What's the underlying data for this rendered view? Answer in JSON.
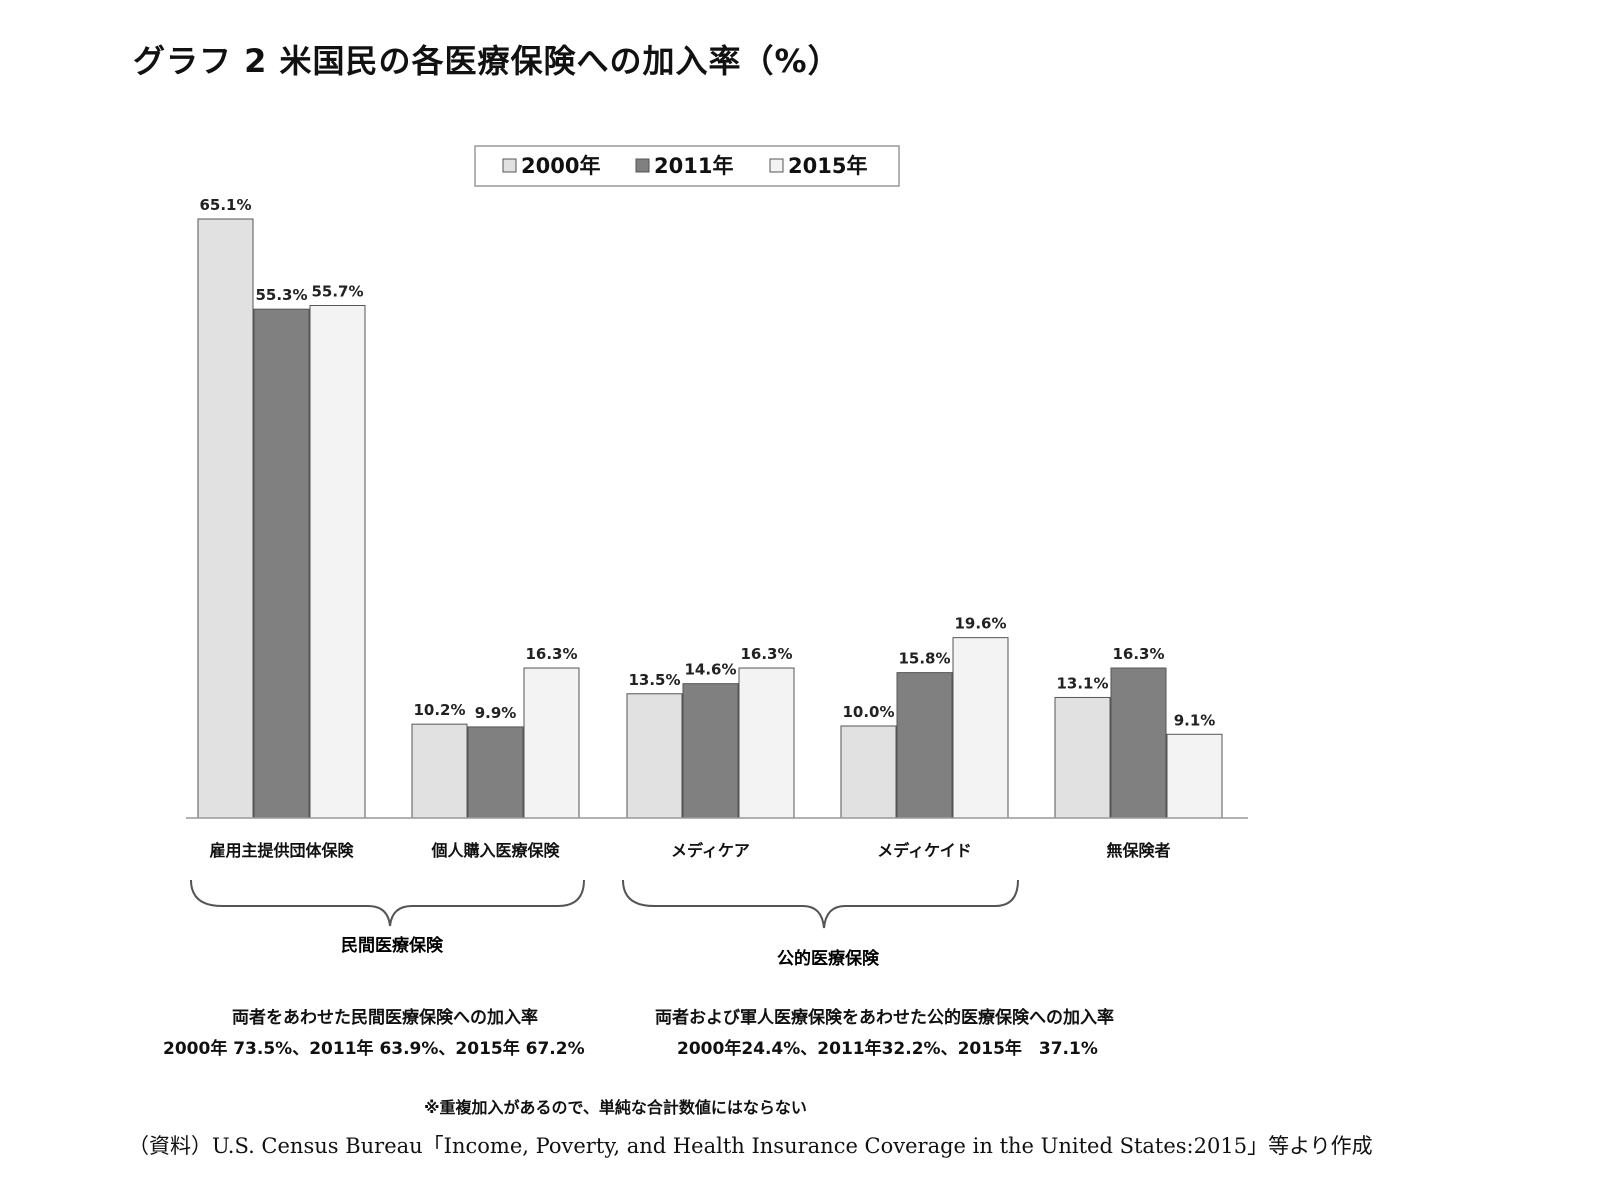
{
  "title": "グラフ 2 米国民の各医療保険への加入率（%）",
  "chart_data": {
    "type": "bar",
    "categories": [
      "雇用主提供団体保険",
      "個人購入医療保険",
      "メディケア",
      "メディケイド",
      "無保険者"
    ],
    "series": [
      {
        "name": "2000年",
        "values": [
          65.1,
          10.2,
          13.5,
          10.0,
          13.1
        ],
        "labels": [
          "65.1%",
          "10.2%",
          "13.5%",
          "10.0%",
          "13.1%"
        ]
      },
      {
        "name": "2011年",
        "values": [
          55.3,
          9.9,
          14.6,
          15.8,
          16.3
        ],
        "labels": [
          "55.3%",
          "9.9%",
          "14.6%",
          "15.8%",
          "16.3%"
        ]
      },
      {
        "name": "2015年",
        "values": [
          55.7,
          16.3,
          16.3,
          19.6,
          9.1
        ],
        "labels": [
          "55.7%",
          "16.3%",
          "16.3%",
          "19.6%",
          "9.1%"
        ]
      }
    ],
    "colors": [
      "#e1e1e1",
      "#808080",
      "#f3f3f3"
    ],
    "legend_position": "top",
    "ylim": [
      0,
      67
    ]
  },
  "groups": {
    "private": "民間医療保険",
    "public": "公的医療保険"
  },
  "notes": {
    "private_line1": "両者をあわせた民間医療保険への加入率",
    "private_line2": "2000年 73.5%、2011年 63.9%、2015年 67.2%",
    "public_line1": "両者および軍人医療保険をあわせた公的医療保険への加入率",
    "public_line2": "2000年24.4%、2011年32.2%、2015年　37.1%",
    "footnote": "※重複加入があるので、単純な合計数値にはならない"
  },
  "source": "（資料）U.S. Census Bureau「Income, Poverty, and Health Insurance Coverage in the United States:2015」等より作成"
}
